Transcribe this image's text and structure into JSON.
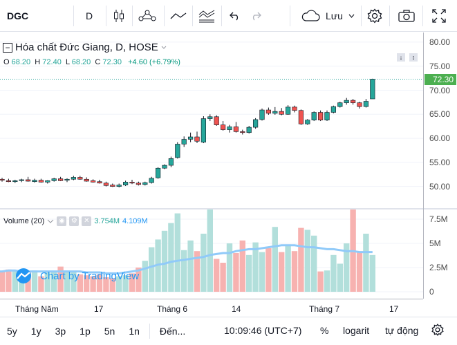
{
  "toolbar": {
    "symbol": "DGC",
    "interval": "D",
    "save_label": "Lưu",
    "icons": [
      "candles-icon",
      "indicators-icon",
      "compare-icon",
      "drawing-icon",
      "undo-icon",
      "redo-icon",
      "cloud-icon",
      "chevron-down-icon",
      "settings-icon",
      "camera-icon",
      "fullscreen-icon"
    ]
  },
  "legend": {
    "title": "Hóa chất Đức Giang, D, HOSE",
    "o_label": "O",
    "o": "68.20",
    "h_label": "H",
    "h": "72.40",
    "l_label": "L",
    "l": "68.20",
    "c_label": "C",
    "c": "72.30",
    "change": "+4.60 (+6.79%)"
  },
  "volume_legend": {
    "name": "Volume (20)",
    "value": "3.754M",
    "ma": "4.109M"
  },
  "watermark": "Chart by TradingView",
  "last_price": "72.30",
  "bottom_bar": {
    "ranges": [
      "5y",
      "1y",
      "3p",
      "1p",
      "5n",
      "1n"
    ],
    "goto": "Đến...",
    "time": "10:09:46 (UTC+7)",
    "percent": "%",
    "log": "logarit",
    "auto": "tự động"
  },
  "colors": {
    "up": "#26a69a",
    "down": "#ef5350",
    "vol_up": "#b2dfdb",
    "vol_down": "#f7b2b0",
    "ma": "#90caf9",
    "last": "#4caf50"
  },
  "chart_data": {
    "type": "candlestick",
    "price_axis": {
      "ticks": [
        "80.00",
        "75.00",
        "70.00",
        "65.00",
        "60.00",
        "55.00",
        "50.00"
      ],
      "ylim": [
        45.5,
        82
      ]
    },
    "volume_axis": {
      "ticks": [
        "7.5M",
        "5M",
        "2.5M",
        "0"
      ],
      "ylim": [
        0,
        8.5
      ]
    },
    "x_labels": [
      "Tháng Năm",
      "17",
      "Tháng 6",
      "14",
      "Tháng 7",
      "17"
    ],
    "candles": [
      [
        51.5,
        51.8,
        51.0,
        51.3
      ],
      [
        51.2,
        51.6,
        50.9,
        51.0
      ],
      [
        51.0,
        51.4,
        50.7,
        51.2
      ],
      [
        51.2,
        51.6,
        50.9,
        51.4
      ],
      [
        51.4,
        52.0,
        51.0,
        51.1
      ],
      [
        51.0,
        51.6,
        50.8,
        51.3
      ],
      [
        51.3,
        51.6,
        50.8,
        50.9
      ],
      [
        50.9,
        51.3,
        50.6,
        51.2
      ],
      [
        51.2,
        51.8,
        51.0,
        51.6
      ],
      [
        51.6,
        52.0,
        51.1,
        51.2
      ],
      [
        51.3,
        51.7,
        50.9,
        51.5
      ],
      [
        51.5,
        52.2,
        51.3,
        51.9
      ],
      [
        51.9,
        52.2,
        51.4,
        51.5
      ],
      [
        51.5,
        51.9,
        51.0,
        51.1
      ],
      [
        51.2,
        51.5,
        50.8,
        50.9
      ],
      [
        51.0,
        51.4,
        50.6,
        50.7
      ],
      [
        50.7,
        51.0,
        50.0,
        50.2
      ],
      [
        50.3,
        50.6,
        49.9,
        50.0
      ],
      [
        50.0,
        50.6,
        49.8,
        50.3
      ],
      [
        50.3,
        51.2,
        50.1,
        50.9
      ],
      [
        50.9,
        51.4,
        50.5,
        50.7
      ],
      [
        50.7,
        51.0,
        50.2,
        50.4
      ],
      [
        50.4,
        51.0,
        50.2,
        50.8
      ],
      [
        50.8,
        52.0,
        50.6,
        51.7
      ],
      [
        51.8,
        54.0,
        51.6,
        53.8
      ],
      [
        53.8,
        54.6,
        53.6,
        54.4
      ],
      [
        54.4,
        56.2,
        54.0,
        55.8
      ],
      [
        56.0,
        59.2,
        55.8,
        58.8
      ],
      [
        58.8,
        60.4,
        58.2,
        59.8
      ],
      [
        59.8,
        61.2,
        59.2,
        60.3
      ],
      [
        60.3,
        61.4,
        59.0,
        59.4
      ],
      [
        59.2,
        64.6,
        59.0,
        64.1
      ],
      [
        64.1,
        65.0,
        63.6,
        64.5
      ],
      [
        64.5,
        64.8,
        62.6,
        62.8
      ],
      [
        62.8,
        63.6,
        61.6,
        61.8
      ],
      [
        61.8,
        62.8,
        61.2,
        62.4
      ],
      [
        62.4,
        63.4,
        61.2,
        61.4
      ],
      [
        61.4,
        61.8,
        60.8,
        61.2
      ],
      [
        61.2,
        62.6,
        61.0,
        62.3
      ],
      [
        62.3,
        64.2,
        62.0,
        63.9
      ],
      [
        63.9,
        66.2,
        63.7,
        65.9
      ],
      [
        65.9,
        66.4,
        64.9,
        65.2
      ],
      [
        65.2,
        66.5,
        64.9,
        65.6
      ],
      [
        65.6,
        66.3,
        64.8,
        65.0
      ],
      [
        65.0,
        66.9,
        64.9,
        66.5
      ],
      [
        66.5,
        66.8,
        65.4,
        65.8
      ],
      [
        65.8,
        66.0,
        62.8,
        63.0
      ],
      [
        63.0,
        64.0,
        62.8,
        63.8
      ],
      [
        63.8,
        65.6,
        63.6,
        65.4
      ],
      [
        65.4,
        65.8,
        63.6,
        63.8
      ],
      [
        63.8,
        65.8,
        63.6,
        65.4
      ],
      [
        65.4,
        66.8,
        65.2,
        66.6
      ],
      [
        66.6,
        67.6,
        66.4,
        67.4
      ],
      [
        67.4,
        68.4,
        67.0,
        67.9
      ],
      [
        67.9,
        68.2,
        67.0,
        67.4
      ],
      [
        67.4,
        67.6,
        66.2,
        66.6
      ],
      [
        66.6,
        68.2,
        66.4,
        67.7
      ],
      [
        68.2,
        72.4,
        68.2,
        72.3
      ]
    ],
    "volume": [
      2.1,
      2.3,
      2.2,
      1.9,
      2.0,
      2.2,
      1.6,
      2.0,
      2.1,
      2.6,
      2.2,
      2.0,
      1.8,
      1.7,
      1.6,
      1.8,
      1.5,
      1.4,
      1.6,
      1.7,
      1.9,
      2.5,
      3.2,
      4.6,
      5.4,
      6.3,
      7.1,
      8.1,
      4.3,
      5.3,
      4.2,
      6.0,
      8.9,
      3.4,
      3.0,
      5.0,
      4.0,
      5.3,
      3.8,
      5.1,
      4.1,
      4.5,
      6.7,
      4.1,
      4.9,
      4.2,
      6.6,
      6.4,
      5.8,
      2.1,
      2.2,
      3.8,
      2.9,
      5.0,
      8.8,
      4.1,
      6.0,
      3.8
    ],
    "volume_ma": [
      2.1,
      2.2,
      2.2,
      2.1,
      2.1,
      2.1,
      2.1,
      2.1,
      2.1,
      2.1,
      2.1,
      2.1,
      2.1,
      2.0,
      2.0,
      2.0,
      1.9,
      1.9,
      1.9,
      2.0,
      2.1,
      2.2,
      2.4,
      2.6,
      2.8,
      2.9,
      3.1,
      3.2,
      3.3,
      3.4,
      3.5,
      3.6,
      3.8,
      3.9,
      4.0,
      4.0,
      4.2,
      4.3,
      4.4,
      4.4,
      4.5,
      4.6,
      4.7,
      4.8,
      4.8,
      4.8,
      4.7,
      4.6,
      4.6,
      4.5,
      4.4,
      4.4,
      4.3,
      4.2,
      4.2,
      4.1,
      4.1,
      4.1
    ]
  }
}
